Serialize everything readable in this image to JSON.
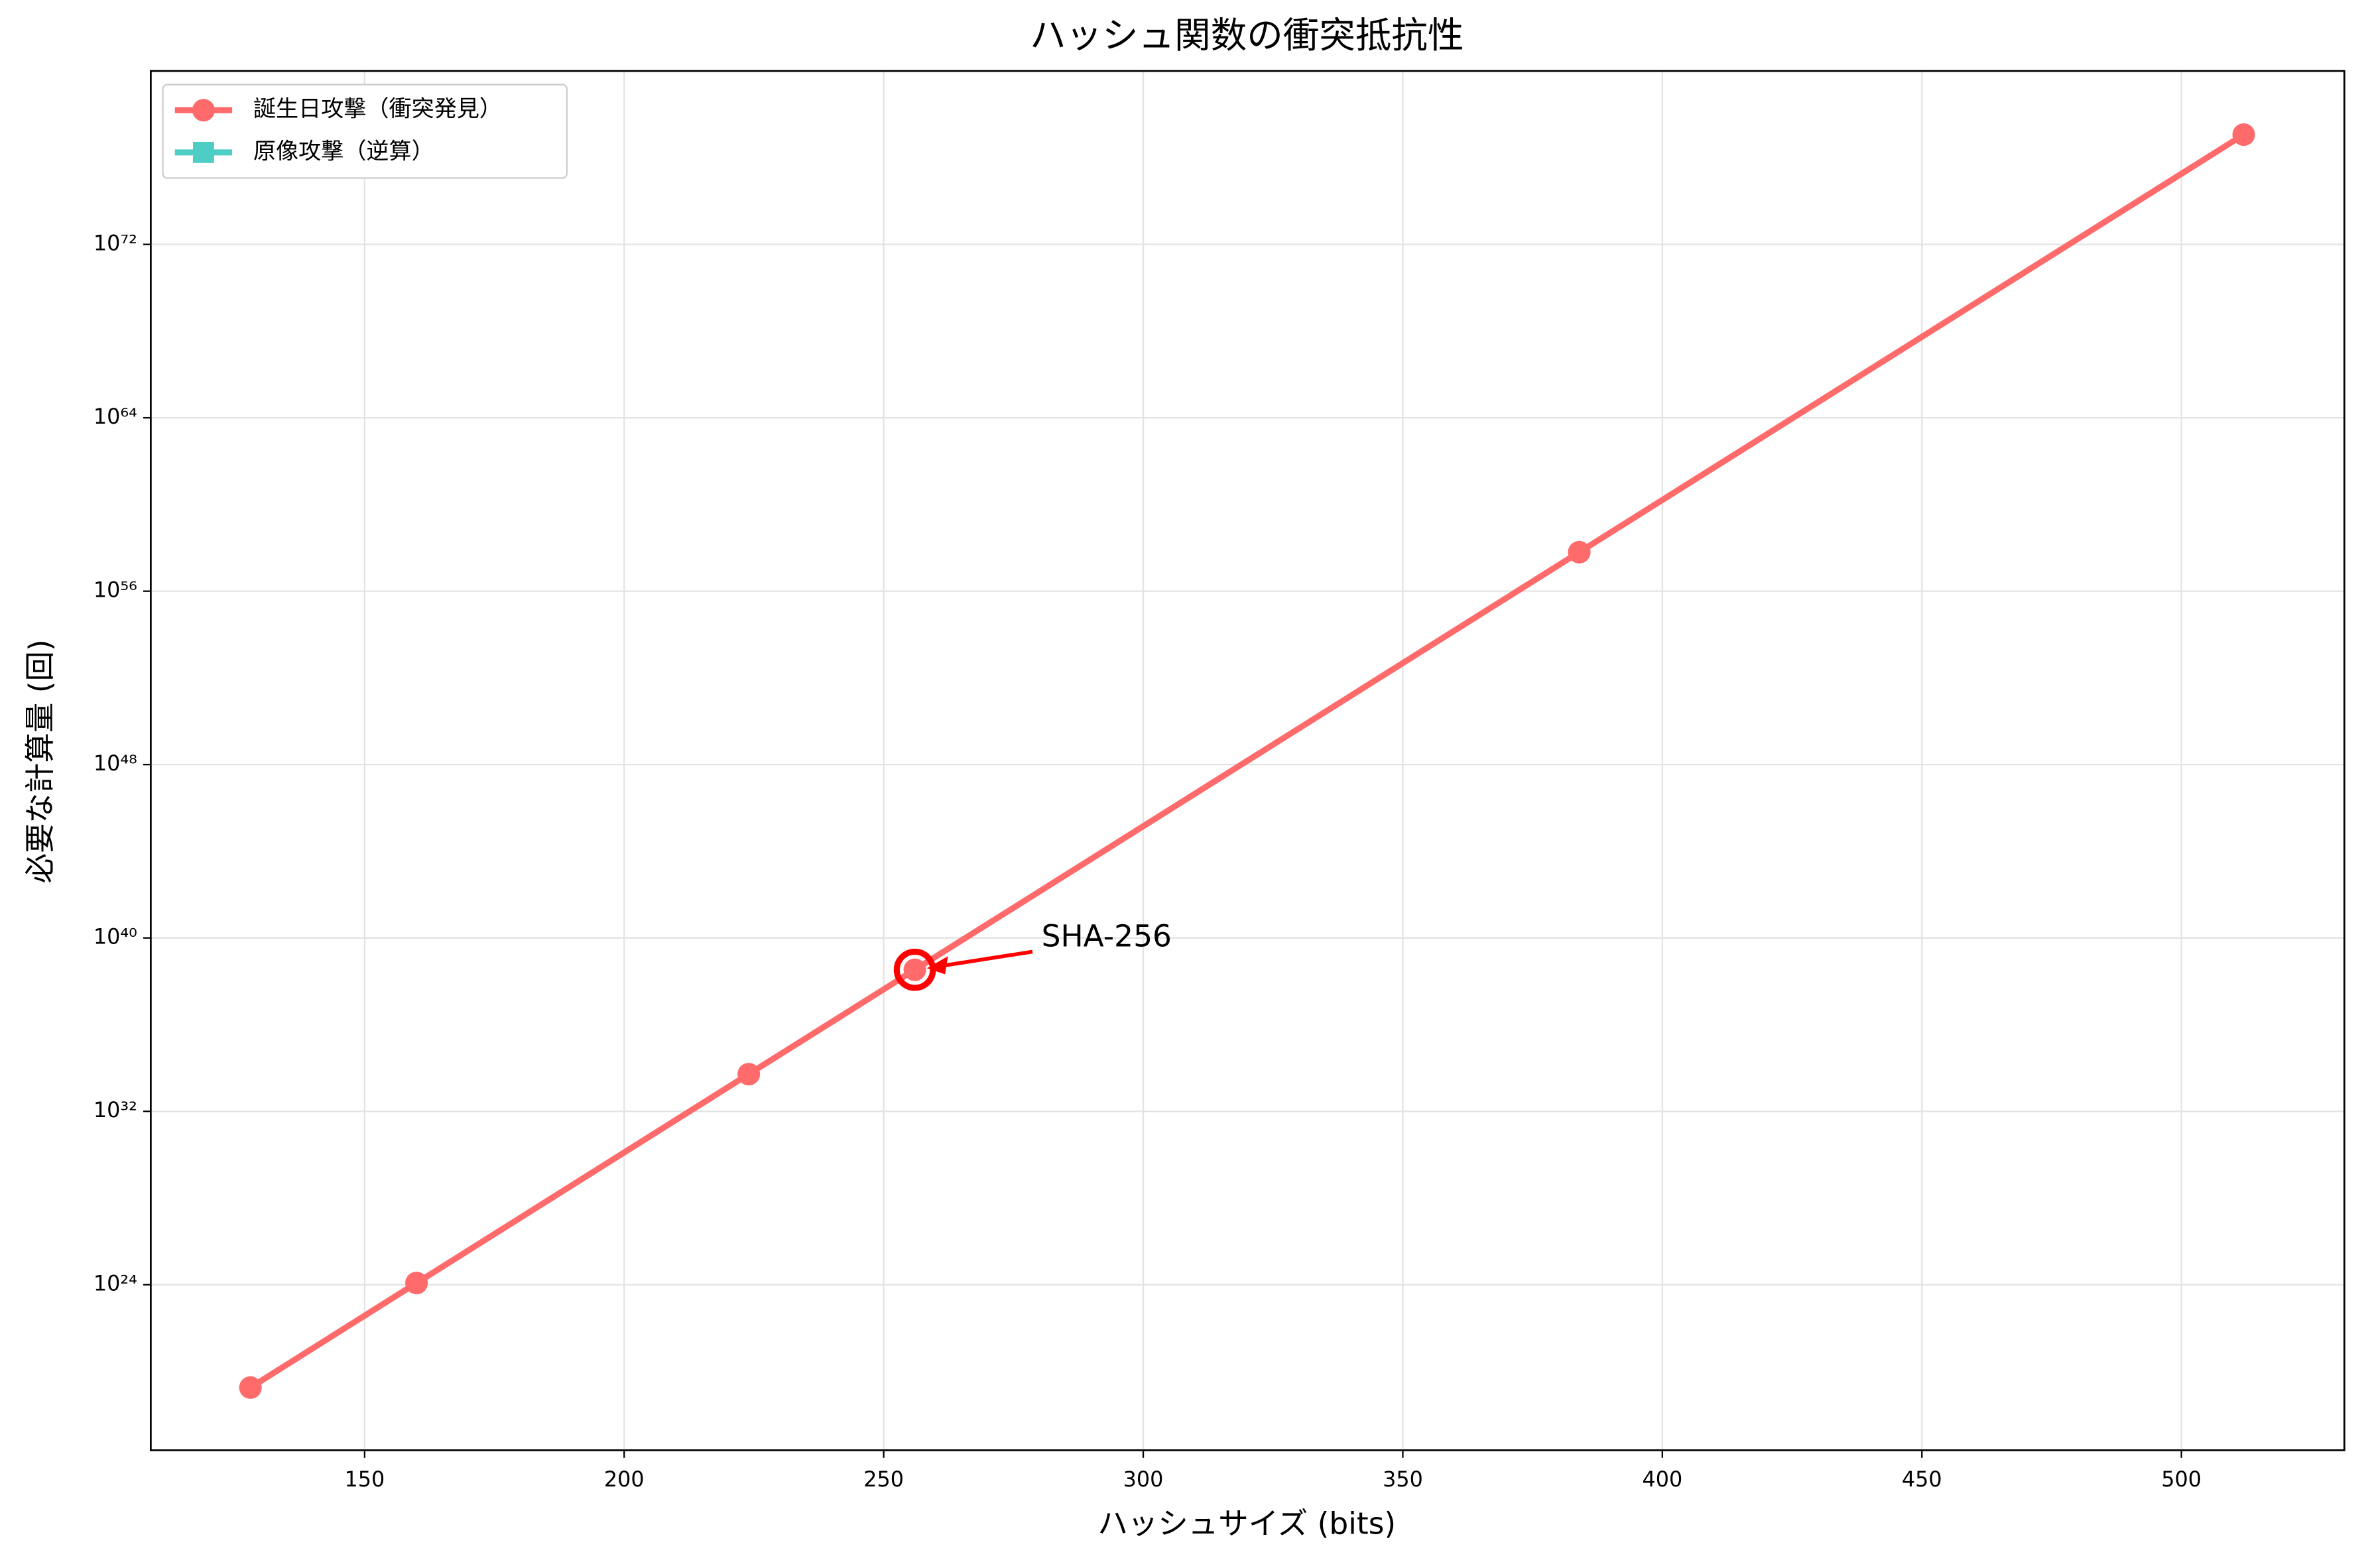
{
  "chart_data": {
    "type": "line",
    "title": "ハッシュ関数の衝突抵抗性",
    "xlabel": "ハッシュサイズ (bits)",
    "ylabel": "必要な計算量 (回)",
    "x": [
      128,
      160,
      224,
      256,
      384,
      512
    ],
    "series": [
      {
        "name": "誕生日攻撃（衝突発見）",
        "color": "#ff6b6b",
        "marker": "circle",
        "values": [
          1.8e+19,
          1.2e+24,
          5.2e+33,
          3.4e+38,
          6.3e+57,
          1.16e+77
        ]
      },
      {
        "name": "原像攻撃（逆算）",
        "color": "#4ecdc4",
        "marker": "square",
        "values": [
          null,
          null,
          null,
          null,
          null,
          null
        ]
      }
    ],
    "xlim": [
      108.8,
      531.4
    ],
    "ylim": [
      2.3e+16,
      1e+80
    ],
    "log_y": true,
    "xticks": [
      150,
      200,
      250,
      300,
      350,
      400,
      450,
      500
    ],
    "yticks": [
      {
        "value": 1e+24,
        "label": "10²⁴"
      },
      {
        "value": 1e+32,
        "label": "10³²"
      },
      {
        "value": 1e+40,
        "label": "10⁴⁰"
      },
      {
        "value": 1e+48,
        "label": "10⁴⁸"
      },
      {
        "value": 1e+56,
        "label": "10⁵⁶"
      },
      {
        "value": 1e+64,
        "label": "10⁶⁴"
      },
      {
        "value": 1e+72,
        "label": "10⁷²"
      }
    ],
    "grid": true,
    "legend": "upper left",
    "annotation": {
      "text": "SHA-256",
      "x": 256,
      "y": 3.4e+38,
      "color": "#ff0000"
    }
  }
}
